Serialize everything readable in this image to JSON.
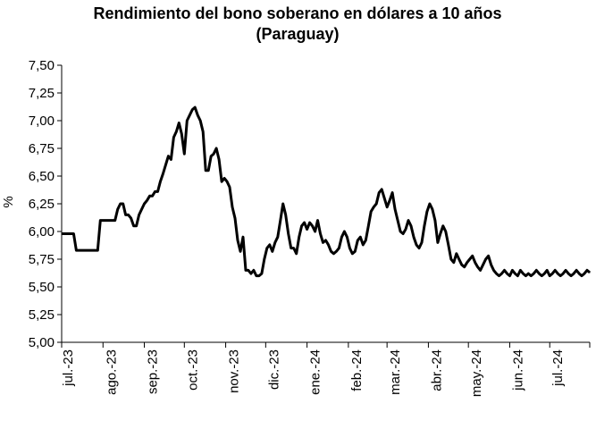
{
  "chart_data": {
    "type": "line",
    "title": "Rendimiento del bono soberano en dólares a 10 años",
    "subtitle": "(Paraguay)",
    "xlabel": "",
    "ylabel": "%",
    "ylim": [
      5.0,
      7.5
    ],
    "yticks": [
      "5,00",
      "5,25",
      "5,50",
      "5,75",
      "6,00",
      "6,25",
      "6,50",
      "6,75",
      "7,00",
      "7,25",
      "7,50"
    ],
    "xticks": [
      "jul.-23",
      "ago.-23",
      "sep.-23",
      "oct.-23",
      "nov.-23",
      "dic.-23",
      "ene.-24",
      "feb.-24",
      "mar.-24",
      "abr.-24",
      "may.-24",
      "jun.-24",
      "jul.-24"
    ],
    "xlim": [
      "2023-07-01",
      "2024-07-31"
    ],
    "grid": false,
    "legend": "none",
    "line_color": "#000000",
    "series": [
      {
        "x": [
          "2023-07-01",
          "2023-07-05",
          "2023-07-10",
          "2023-07-12",
          "2023-07-20",
          "2023-07-28",
          "2023-07-30",
          "2023-08-05",
          "2023-08-08",
          "2023-08-10",
          "2023-08-12",
          "2023-08-14",
          "2023-08-16",
          "2023-08-18",
          "2023-08-20",
          "2023-08-22",
          "2023-08-24",
          "2023-08-26",
          "2023-08-28",
          "2023-08-30",
          "2023-09-01",
          "2023-09-03",
          "2023-09-05",
          "2023-09-07",
          "2023-09-09",
          "2023-09-11",
          "2023-09-13",
          "2023-09-15",
          "2023-09-17",
          "2023-09-19",
          "2023-09-21",
          "2023-09-23",
          "2023-09-25",
          "2023-09-27",
          "2023-09-29",
          "2023-10-01",
          "2023-10-03",
          "2023-10-05",
          "2023-10-07",
          "2023-10-09",
          "2023-10-11",
          "2023-10-13",
          "2023-10-15",
          "2023-10-17",
          "2023-10-19",
          "2023-10-21",
          "2023-10-23",
          "2023-10-25",
          "2023-10-27",
          "2023-10-29",
          "2023-10-31",
          "2023-11-02",
          "2023-11-04",
          "2023-11-06",
          "2023-11-08",
          "2023-11-10",
          "2023-11-12",
          "2023-11-14",
          "2023-11-16",
          "2023-11-18",
          "2023-11-20",
          "2023-11-22",
          "2023-11-24",
          "2023-11-26",
          "2023-11-28",
          "2023-11-30",
          "2023-12-02",
          "2023-12-04",
          "2023-12-06",
          "2023-12-08",
          "2023-12-10",
          "2023-12-12",
          "2023-12-14",
          "2023-12-16",
          "2023-12-18",
          "2023-12-20",
          "2023-12-22",
          "2023-12-24",
          "2023-12-26",
          "2023-12-28",
          "2023-12-30",
          "2024-01-01",
          "2024-01-03",
          "2024-01-05",
          "2024-01-07",
          "2024-01-09",
          "2024-01-11",
          "2024-01-13",
          "2024-01-15",
          "2024-01-17",
          "2024-01-19",
          "2024-01-21",
          "2024-01-23",
          "2024-01-25",
          "2024-01-27",
          "2024-01-29",
          "2024-01-31",
          "2024-02-02",
          "2024-02-04",
          "2024-02-06",
          "2024-02-08",
          "2024-02-10",
          "2024-02-12",
          "2024-02-14",
          "2024-02-16",
          "2024-02-18",
          "2024-02-20",
          "2024-02-22",
          "2024-02-24",
          "2024-02-26",
          "2024-02-28",
          "2024-03-01",
          "2024-03-03",
          "2024-03-05",
          "2024-03-07",
          "2024-03-09",
          "2024-03-11",
          "2024-03-13",
          "2024-03-15",
          "2024-03-17",
          "2024-03-19",
          "2024-03-21",
          "2024-03-23",
          "2024-03-25",
          "2024-03-27",
          "2024-03-29",
          "2024-03-31",
          "2024-04-02",
          "2024-04-04",
          "2024-04-06",
          "2024-04-08",
          "2024-04-10",
          "2024-04-12",
          "2024-04-14",
          "2024-04-16",
          "2024-04-18",
          "2024-04-20",
          "2024-04-22",
          "2024-04-24",
          "2024-04-26",
          "2024-04-28",
          "2024-04-30",
          "2024-05-02",
          "2024-05-04",
          "2024-05-06",
          "2024-05-08",
          "2024-05-10",
          "2024-05-12",
          "2024-05-14",
          "2024-05-16",
          "2024-05-18",
          "2024-05-20",
          "2024-05-22",
          "2024-05-24",
          "2024-05-26",
          "2024-05-28",
          "2024-05-30",
          "2024-06-01",
          "2024-06-03",
          "2024-06-05",
          "2024-06-07",
          "2024-06-09",
          "2024-06-11",
          "2024-06-13",
          "2024-06-15",
          "2024-06-17",
          "2024-06-19",
          "2024-06-21",
          "2024-06-23",
          "2024-06-25",
          "2024-06-27",
          "2024-06-29",
          "2024-07-01",
          "2024-07-03",
          "2024-07-05",
          "2024-07-07",
          "2024-07-09",
          "2024-07-11",
          "2024-07-13",
          "2024-07-15",
          "2024-07-17",
          "2024-07-19",
          "2024-07-21",
          "2024-07-23",
          "2024-07-25",
          "2024-07-27",
          "2024-07-29",
          "2024-07-31"
        ],
        "values": [
          5.98,
          5.98,
          5.98,
          5.83,
          5.83,
          5.83,
          6.1,
          6.1,
          6.1,
          6.1,
          6.2,
          6.25,
          6.25,
          6.15,
          6.15,
          6.12,
          6.05,
          6.05,
          6.15,
          6.2,
          6.25,
          6.28,
          6.32,
          6.32,
          6.36,
          6.36,
          6.45,
          6.52,
          6.6,
          6.68,
          6.65,
          6.85,
          6.9,
          6.98,
          6.88,
          6.7,
          7.0,
          7.05,
          7.1,
          7.12,
          7.05,
          7.0,
          6.9,
          6.55,
          6.55,
          6.68,
          6.7,
          6.75,
          6.65,
          6.45,
          6.48,
          6.45,
          6.4,
          6.22,
          6.12,
          5.92,
          5.82,
          5.95,
          5.65,
          5.65,
          5.62,
          5.65,
          5.6,
          5.6,
          5.62,
          5.75,
          5.85,
          5.88,
          5.82,
          5.9,
          5.95,
          6.1,
          6.25,
          6.15,
          5.98,
          5.85,
          5.85,
          5.8,
          5.95,
          6.05,
          6.08,
          6.02,
          6.08,
          6.05,
          6.0,
          6.1,
          5.98,
          5.9,
          5.92,
          5.88,
          5.82,
          5.8,
          5.82,
          5.85,
          5.95,
          6.0,
          5.95,
          5.85,
          5.8,
          5.82,
          5.92,
          5.95,
          5.88,
          5.92,
          6.05,
          6.18,
          6.22,
          6.25,
          6.35,
          6.38,
          6.3,
          6.22,
          6.28,
          6.35,
          6.2,
          6.1,
          6.0,
          5.98,
          6.02,
          6.1,
          6.05,
          5.95,
          5.88,
          5.85,
          5.9,
          6.05,
          6.18,
          6.25,
          6.2,
          6.1,
          5.9,
          5.98,
          6.05,
          6.0,
          5.88,
          5.75,
          5.72,
          5.8,
          5.75,
          5.7,
          5.68,
          5.72,
          5.75,
          5.78,
          5.72,
          5.68,
          5.65,
          5.7,
          5.75,
          5.78,
          5.7,
          5.65,
          5.62,
          5.6,
          5.62,
          5.65,
          5.62,
          5.6,
          5.65,
          5.62,
          5.6,
          5.65,
          5.62,
          5.6,
          5.62,
          5.6,
          5.62,
          5.65,
          5.62,
          5.6,
          5.62,
          5.65,
          5.6,
          5.62,
          5.65,
          5.62,
          5.6,
          5.62,
          5.65,
          5.62,
          5.6,
          5.62,
          5.65,
          5.62,
          5.6,
          5.62,
          5.65,
          5.63
        ]
      }
    ]
  }
}
